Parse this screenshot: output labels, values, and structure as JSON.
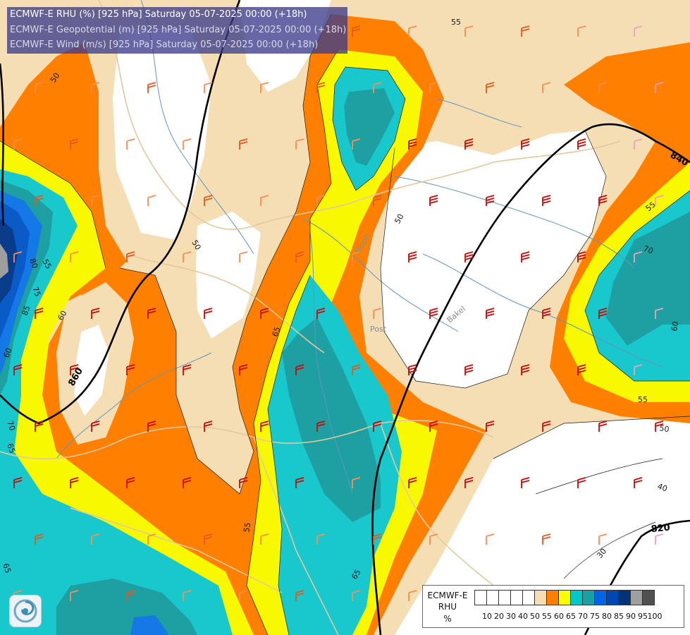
{
  "title_lines": {
    "rhu": "ECMWF-E RHU (%) [925 hPa] Saturday 05-07-2025 00:00 (+18h)",
    "geopotential": "ECMWF-E Geopotential (m) [925 hPa] Saturday 05-07-2025 00:00 (+18h)",
    "wind": "ECMWF-E Wind (m/s) [925 hPa] Saturday 05-07-2025 00:00 (+18h)"
  },
  "legend": {
    "title_line1": "ECMWF-E",
    "title_line2": "RHU",
    "title_line3": "%",
    "ticks": [
      "10",
      "20",
      "30",
      "40",
      "50",
      "55",
      "60",
      "65",
      "70",
      "75",
      "80",
      "85",
      "90",
      "95",
      "100"
    ],
    "colors": [
      "#ffffff",
      "#ffffff",
      "#ffffff",
      "#ffffff",
      "#ffffff",
      "#f5deb3",
      "#ff8000",
      "#ffff00",
      "#00c8c8",
      "#1aa0a0",
      "#0064e6",
      "#0046b4",
      "#003278",
      "#a0a0a0",
      "#505050"
    ]
  },
  "rhu_colors": {
    "band_50_55": "#f5deb3",
    "band_55_60": "#ff8000",
    "band_60_65": "#f8f800",
    "band_65_70": "#19c8cc",
    "band_70_75": "#1ea0a2",
    "band_75_80": "#1478e6",
    "band_80_85": "#0a5ac8",
    "band_85_90": "#0a3c8c",
    "band_90_95": "#9e9e9e"
  },
  "geopotential_labels": [
    "860",
    "840",
    "820"
  ],
  "rhu_contour_labels": [
    "50",
    "55",
    "50",
    "50",
    "55",
    "60",
    "65",
    "65",
    "55",
    "55",
    "50",
    "40",
    "30",
    "60",
    "70",
    "75",
    "80",
    "85",
    "55",
    "65",
    "60",
    "70",
    "65"
  ],
  "place_labels": [
    "Post",
    "Bakel",
    "Mopti"
  ],
  "wind_barb_colors": {
    "light": "#ff8c50",
    "medium": "#e05a1e",
    "strong": "#c80a0a",
    "calm": "#f0a0c0"
  },
  "logo_icon": "cyclone-logo-icon"
}
